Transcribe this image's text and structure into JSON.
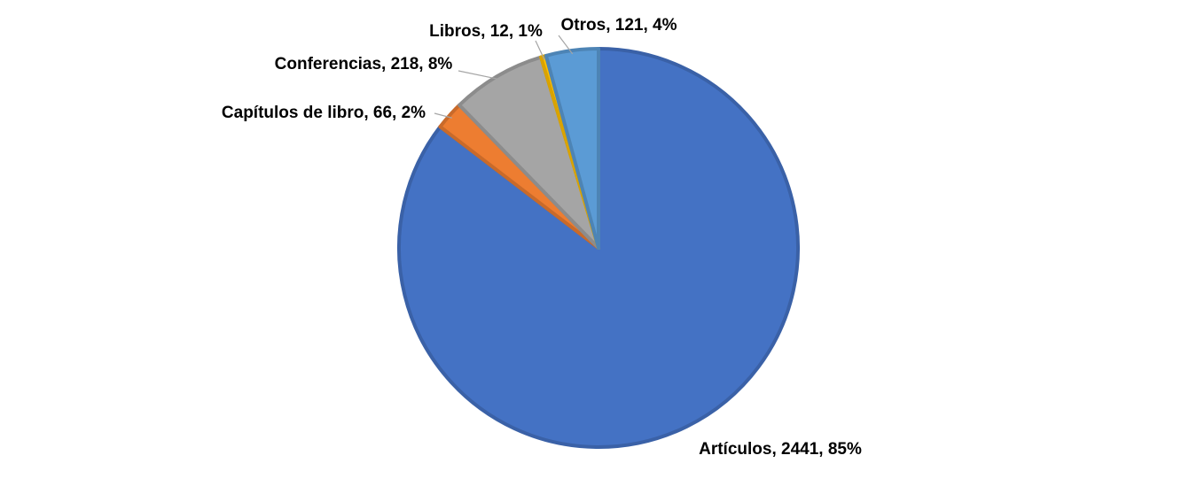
{
  "chart_data": {
    "type": "pie",
    "categories": [
      "Artículos",
      "Capítulos de libro",
      "Conferencias",
      "Libros",
      "Otros"
    ],
    "values": [
      2441,
      66,
      218,
      12,
      121
    ],
    "value_labels": [
      "Artículos, 2441, 85%",
      "Capítulos de libro, 66, 2%",
      "Conferencias, 218, 8%",
      "Libros, 12, 1%",
      "Otros, 121, 4%"
    ],
    "colors": [
      "#4472c4",
      "#ed7d31",
      "#a5a5a5",
      "#ffc000",
      "#5b9bd5"
    ]
  }
}
